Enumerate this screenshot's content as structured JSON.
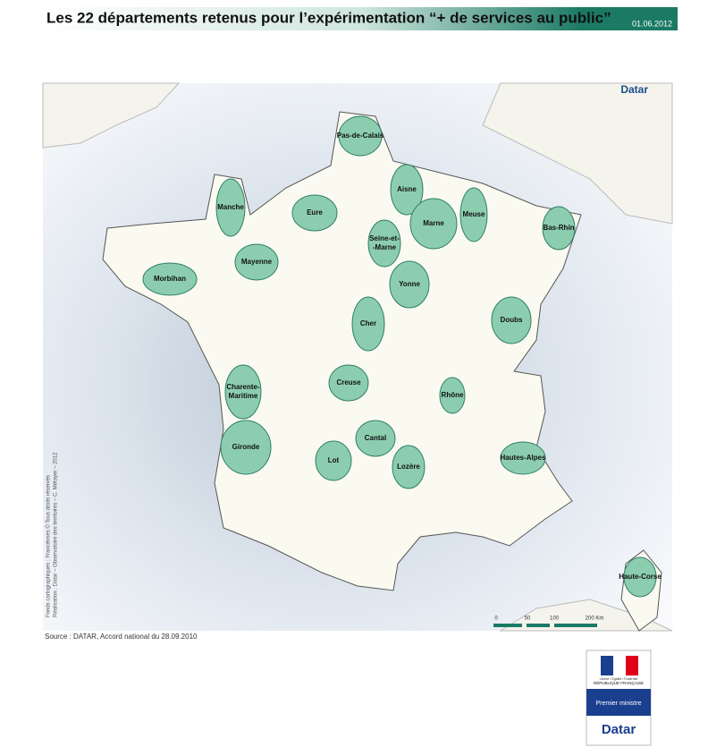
{
  "header": {
    "title": "Les 22 départements retenus pour l’expérimentation “+ de services au public”",
    "date": "01.06.2012"
  },
  "map": {
    "brand": "Datar",
    "departments": [
      [
        "Pas-de-Calais"
      ],
      [
        "Aisne"
      ],
      [
        "Manche"
      ],
      [
        "Eure"
      ],
      [
        "Marne"
      ],
      [
        "Meuse"
      ],
      [
        "Bas-Rhin"
      ],
      [
        "Seine-et-",
        "-Marne"
      ],
      [
        "Mayenne"
      ],
      [
        "Morbihan"
      ],
      [
        "Yonne"
      ],
      [
        "Cher"
      ],
      [
        "Doubs"
      ],
      [
        "Charente-",
        "Maritime"
      ],
      [
        "Creuse"
      ],
      [
        "Rhône"
      ],
      [
        "Cantal"
      ],
      [
        "Gironde"
      ],
      [
        "Lot"
      ],
      [
        "Lozère"
      ],
      [
        "Hautes-Alpes"
      ],
      [
        "Haute-Corse"
      ]
    ],
    "scale": [
      "0",
      "50",
      "100",
      "200 Km"
    ],
    "credits": [
      "Fonds cartographiques : Francéimes © Tous droits réservés",
      "Réalisation : Datar – Observatoire des territoires – C. Métayer – 2012"
    ]
  },
  "source": "Source : DATAR, Accord national du 28.09.2010",
  "logo": {
    "motto": "Liberté • Égalité • Fraternité",
    "republic": "RÉPUBLIQUE FRANÇAISE",
    "ministry": "Premier ministre",
    "brand": "Datar"
  }
}
